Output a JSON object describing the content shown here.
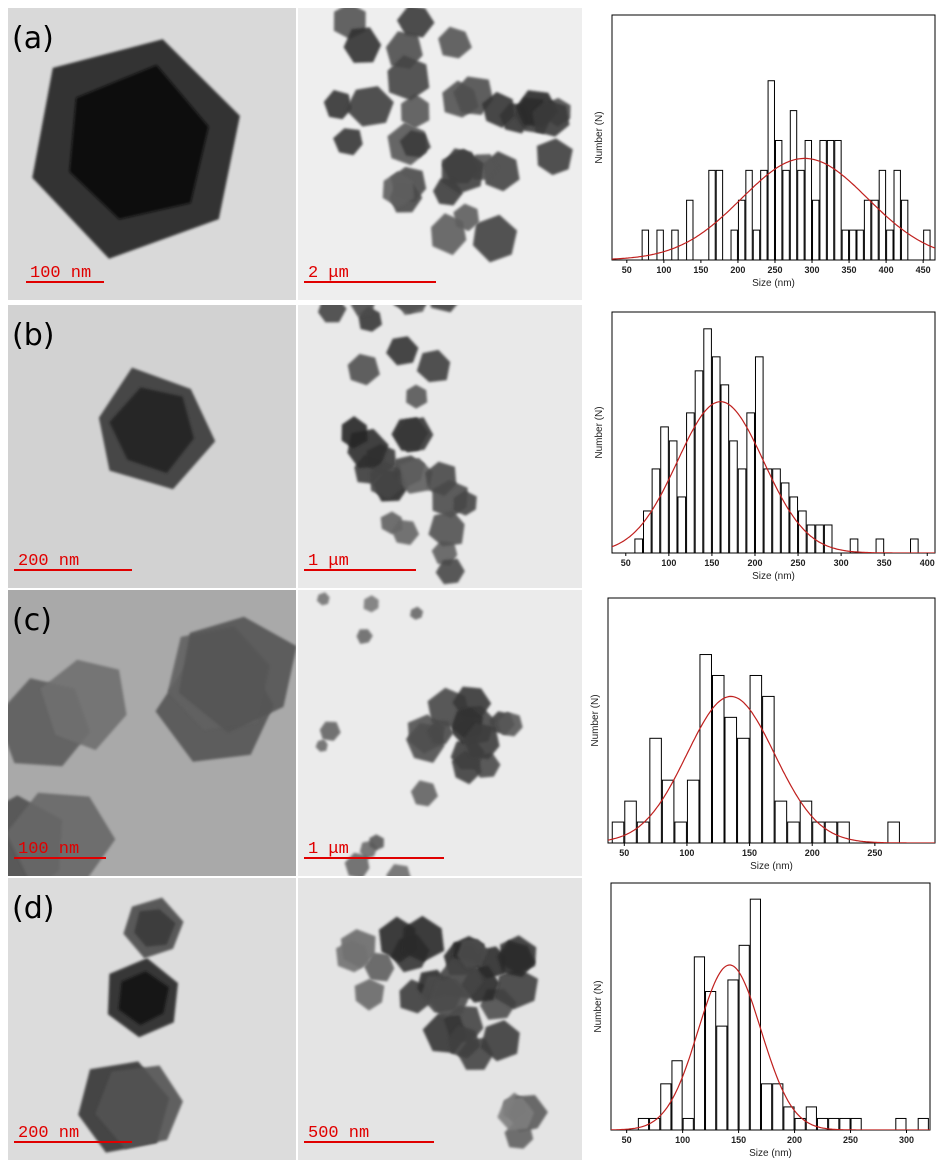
{
  "panels": [
    {
      "label": "(a)",
      "scale_bars": [
        "100 nm",
        "2 μm"
      ]
    },
    {
      "label": "(b)",
      "scale_bars": [
        "200 nm",
        "1 μm"
      ]
    },
    {
      "label": "(c)",
      "scale_bars": [
        "100 nm",
        "1 μm"
      ]
    },
    {
      "label": "(d)",
      "scale_bars": [
        "200 nm",
        "500 nm"
      ]
    }
  ],
  "chart_data": [
    {
      "type": "histogram",
      "xlabel": "Size (nm)",
      "ylabel": "Number (N)",
      "color": "#000000",
      "bins": [
        70,
        80,
        90,
        100,
        110,
        120,
        130,
        140,
        150,
        160,
        170,
        180,
        190,
        200,
        210,
        220,
        230,
        240,
        250,
        260,
        270,
        280,
        290,
        300,
        310,
        320,
        330,
        340,
        350,
        360,
        370,
        380,
        390,
        400,
        410,
        420,
        430,
        440,
        450,
        460
      ],
      "values": [
        1,
        0,
        1,
        0,
        1,
        0,
        2,
        0,
        0,
        3,
        3,
        0,
        1,
        2,
        3,
        1,
        3,
        6,
        4,
        3,
        5,
        3,
        4,
        2,
        4,
        4,
        4,
        1,
        1,
        1,
        2,
        2,
        3,
        1,
        3,
        2,
        0,
        0,
        1
      ],
      "fit": {
        "color": "#c0201e",
        "mean": 290,
        "sd": 85,
        "peak": 3.4
      },
      "xlim": [
        30,
        466
      ],
      "xticks": [
        50,
        100,
        150,
        200,
        250,
        300,
        350,
        400,
        450
      ],
      "ylim": [
        0,
        8.2
      ]
    },
    {
      "type": "histogram",
      "xlabel": "Size (nm)",
      "ylabel": "Number (N)",
      "color": "#000000",
      "bins": [
        60,
        70,
        80,
        90,
        100,
        110,
        120,
        130,
        140,
        150,
        160,
        170,
        180,
        190,
        200,
        210,
        220,
        230,
        240,
        250,
        260,
        270,
        280,
        290,
        300,
        310,
        320,
        330,
        340,
        350,
        360,
        370,
        380,
        390,
        400
      ],
      "values": [
        1,
        3,
        6,
        9,
        8,
        4,
        10,
        13,
        16,
        14,
        12,
        8,
        6,
        10,
        14,
        6,
        6,
        5,
        4,
        3,
        2,
        2,
        2,
        0,
        0,
        1,
        0,
        0,
        1,
        0,
        0,
        0,
        1,
        0
      ],
      "fit": {
        "color": "#c0201e",
        "mean": 160,
        "sd": 50,
        "peak": 10.8
      },
      "xlim": [
        34,
        409
      ],
      "xticks": [
        50,
        100,
        150,
        200,
        250,
        300,
        350,
        400
      ],
      "ylim": [
        0,
        17.2
      ]
    },
    {
      "type": "histogram",
      "xlabel": "Size (nm)",
      "ylabel": "Number (N)",
      "color": "#000000",
      "bins": [
        40,
        50,
        60,
        70,
        80,
        90,
        100,
        110,
        120,
        130,
        140,
        150,
        160,
        170,
        180,
        190,
        200,
        210,
        220,
        230,
        240,
        250,
        260,
        270
      ],
      "values": [
        1,
        2,
        1,
        5,
        3,
        1,
        3,
        9,
        8,
        6,
        5,
        8,
        7,
        2,
        1,
        2,
        1,
        1,
        1,
        0,
        0,
        0,
        1
      ],
      "fit": {
        "color": "#c0201e",
        "mean": 135,
        "sd": 35,
        "peak": 7
      },
      "xlim": [
        37,
        298
      ],
      "xticks": [
        50,
        100,
        150,
        200,
        250
      ],
      "ylim": [
        0,
        11.7
      ]
    },
    {
      "type": "histogram",
      "xlabel": "Size (nm)",
      "ylabel": "Number (N)",
      "color": "#000000",
      "bins": [
        60,
        70,
        80,
        90,
        100,
        110,
        120,
        130,
        140,
        150,
        160,
        170,
        180,
        190,
        200,
        210,
        220,
        230,
        240,
        250,
        260,
        270,
        280,
        290,
        300,
        310,
        320
      ],
      "values": [
        1,
        1,
        4,
        6,
        1,
        15,
        12,
        9,
        13,
        16,
        20,
        4,
        4,
        2,
        1,
        2,
        1,
        1,
        1,
        1,
        0,
        0,
        0,
        1,
        0,
        1
      ],
      "fit": {
        "color": "#c0201e",
        "mean": 142,
        "sd": 28,
        "peak": 14.3
      },
      "xlim": [
        36,
        321
      ],
      "xticks": [
        50,
        100,
        150,
        200,
        250,
        300
      ],
      "ylim": [
        0,
        21.4
      ]
    }
  ]
}
